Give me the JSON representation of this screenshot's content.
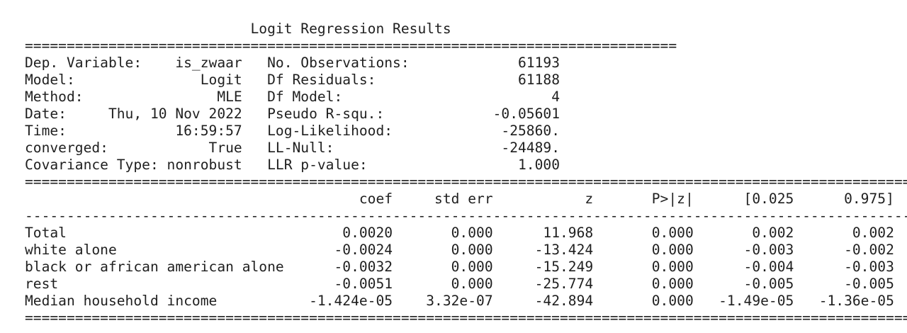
{
  "summary": {
    "title": "Logit Regression Results",
    "left": [
      {
        "label": "Dep. Variable:",
        "value": "is_zwaar"
      },
      {
        "label": "Model:",
        "value": "Logit"
      },
      {
        "label": "Method:",
        "value": "MLE"
      },
      {
        "label": "Date:",
        "value": "Thu, 10 Nov 2022"
      },
      {
        "label": "Time:",
        "value": "16:59:57"
      },
      {
        "label": "converged:",
        "value": "True"
      },
      {
        "label": "Covariance Type:",
        "value": "nonrobust"
      }
    ],
    "right": [
      {
        "label": "No. Observations:",
        "value": "61193"
      },
      {
        "label": "Df Residuals:",
        "value": "61188"
      },
      {
        "label": "Df Model:",
        "value": "4"
      },
      {
        "label": "Pseudo R-squ.:",
        "value": "-0.05601"
      },
      {
        "label": "Log-Likelihood:",
        "value": "-25860."
      },
      {
        "label": "LL-Null:",
        "value": "-24489."
      },
      {
        "label": "LLR p-value:",
        "value": "1.000"
      }
    ]
  },
  "coef_table": {
    "columns": [
      "coef",
      "std err",
      "z",
      "P>|z|",
      "[0.025",
      "0.975]"
    ],
    "rows": [
      {
        "name": "Total",
        "values": [
          "0.0020",
          "0.000",
          "11.968",
          "0.000",
          "0.002",
          "0.002"
        ]
      },
      {
        "name": "white alone",
        "values": [
          "-0.0024",
          "0.000",
          "-13.424",
          "0.000",
          "-0.003",
          "-0.002"
        ]
      },
      {
        "name": "black or african american alone",
        "values": [
          "-0.0032",
          "0.000",
          "-15.249",
          "0.000",
          "-0.004",
          "-0.003"
        ]
      },
      {
        "name": "rest",
        "values": [
          "-0.0051",
          "0.000",
          "-25.774",
          "0.000",
          "-0.005",
          "-0.005"
        ]
      },
      {
        "name": "Median household income",
        "values": [
          "-1.424e-05",
          "3.32e-07",
          "-42.894",
          "0.000",
          "-1.49e-05",
          "-1.36e-05"
        ]
      }
    ]
  }
}
